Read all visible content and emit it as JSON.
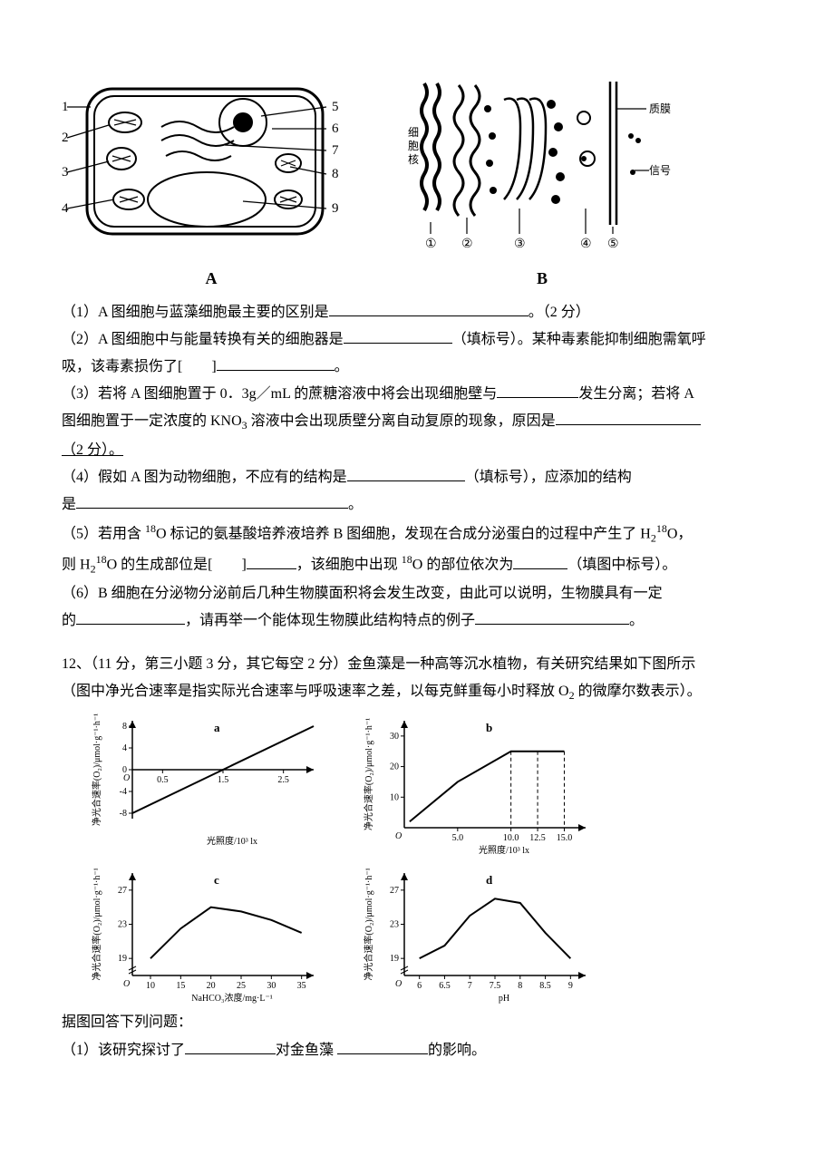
{
  "diagrams": {
    "A": {
      "label": "A",
      "left_numbers": [
        "1",
        "2",
        "3",
        "4"
      ],
      "right_numbers": [
        "5",
        "6",
        "7",
        "8",
        "9"
      ],
      "line_color": "#000000",
      "fill_color": "#ffffff"
    },
    "B": {
      "label": "B",
      "right_labels": [
        "质膜",
        "信号"
      ],
      "left_label": "细胞核",
      "bottom_circles": [
        "①",
        "②",
        "③",
        "④",
        "⑤"
      ],
      "line_color": "#000000"
    }
  },
  "q11": {
    "p1_a": "（1）A 图细胞与蓝藻细胞最主要的区别是",
    "p1_b": "。（2 分）",
    "p2_a": "（2）A 图细胞中与能量转换有关的细胞器是",
    "p2_b": "（填标号）。某种毒素能抑制细胞需氧呼",
    "p3_a": "吸，该毒素损伤了[　　]",
    "p3_b": "。",
    "p4_a": "（3）若将 A 图细胞置于 0．3g／mL 的蔗糖溶液中将会出现细胞壁与",
    "p4_b": "发生分离；若将 A",
    "p5_a": "图细胞置于一定浓度的 KNO",
    "p5_a_sub": "3",
    "p5_a2": " 溶液中会出现质壁分离自动复原的现象，原因是",
    "p6_a": "（2 分）。",
    "p7_a": "（4）假如 A 图为动物细胞，不应有的结构是",
    "p7_b": "（填标号），应添加的结构",
    "p8_a": "是",
    "p8_b": "。",
    "p9_a": "（5）若用含 ",
    "p9_sup1": "18",
    "p9_b": "O 标记的氨基酸培养液培养 B 图细胞，发现在合成分泌蛋白的过程中产生了 H",
    "p9_sub1": "2",
    "p9_sup2": "18",
    "p9_c": "O，",
    "p10_a": "则 H",
    "p10_sub1": "2",
    "p10_sup1": "18",
    "p10_b": "O 的生成部位是[　　]",
    "p10_c": "，该细胞中出现 ",
    "p10_sup2": "18",
    "p10_d": "O 的部位依次为",
    "p10_e": "（填图中标号）。",
    "p11_a": "（6）B 细胞在分泌物分泌前后几种生物膜面积将会发生改变，由此可以说明，生物膜具有一定",
    "p12_a": "的",
    "p12_b": "，请再举一个能体现生物膜此结构特点的例子",
    "p12_c": "。"
  },
  "q12": {
    "intro1": "12、（11 分，第三小题 3 分，其它每空 2 分）金鱼藻是一种高等沉水植物，有关研究结果如下图所示",
    "intro2": "（图中净光合速率是指实际光合速率与呼吸速率之差，以每克鲜重每小时释放 O",
    "intro2_sub": "2",
    "intro2b": " 的微摩尔数表示）。",
    "foot": "据图回答下列问题：",
    "q1_a": "（1）该研究探讨了",
    "q1_b": "对金鱼藻 ",
    "q1_c": "的影响。"
  },
  "charts": {
    "common": {
      "axis_color": "#000000",
      "line_color": "#000000",
      "font_size": 10,
      "y_label": "净光合速率(O₂)/μmol·g⁻¹·h⁻¹"
    },
    "a": {
      "label": "a",
      "x_label": "光照度/10³ lx",
      "x_ticks": [
        "0.5",
        "1.5",
        "2.5"
      ],
      "x_vals": [
        0.5,
        1.5,
        2.5
      ],
      "y_ticks": [
        "-8",
        "-4",
        "0",
        "4",
        "8"
      ],
      "y_vals": [
        -8,
        -4,
        0,
        4,
        8
      ],
      "ylim": [
        -9,
        9
      ],
      "xlim": [
        0,
        3.0
      ],
      "points": [
        [
          0,
          -8
        ],
        [
          3.0,
          8
        ]
      ]
    },
    "b": {
      "label": "b",
      "x_label": "光照度/10³ lx",
      "x_ticks": [
        "5.0",
        "10.0",
        "12.5",
        "15.0"
      ],
      "x_vals": [
        5.0,
        10.0,
        12.5,
        15.0
      ],
      "y_ticks": [
        "10",
        "20",
        "30"
      ],
      "y_vals": [
        10,
        20,
        30
      ],
      "ylim": [
        0,
        35
      ],
      "xlim": [
        0,
        17
      ],
      "points": [
        [
          0.5,
          2
        ],
        [
          5.0,
          15
        ],
        [
          10.0,
          25
        ],
        [
          12.5,
          25
        ],
        [
          15.0,
          25
        ]
      ],
      "droplines_x": [
        10.0,
        12.5,
        15.0
      ],
      "drop_y": 25
    },
    "c": {
      "label": "c",
      "x_label": "NaHCO₃浓度/mg·L⁻¹",
      "x_ticks": [
        "10",
        "15",
        "20",
        "25",
        "30",
        "35"
      ],
      "x_vals": [
        10,
        15,
        20,
        25,
        30,
        35
      ],
      "y_ticks": [
        "19",
        "23",
        "27"
      ],
      "y_vals": [
        19,
        23,
        27
      ],
      "ylim": [
        17,
        29
      ],
      "xlim": [
        7,
        37
      ],
      "points": [
        [
          10,
          19
        ],
        [
          15,
          22.5
        ],
        [
          20,
          25
        ],
        [
          25,
          24.5
        ],
        [
          30,
          23.5
        ],
        [
          35,
          22
        ]
      ]
    },
    "d": {
      "label": "d",
      "x_label": "pH",
      "x_ticks": [
        "6",
        "6.5",
        "7",
        "7.5",
        "8",
        "8.5",
        "9"
      ],
      "x_vals": [
        6,
        6.5,
        7,
        7.5,
        8,
        8.5,
        9
      ],
      "y_ticks": [
        "19",
        "23",
        "27"
      ],
      "y_vals": [
        19,
        23,
        27
      ],
      "ylim": [
        17,
        29
      ],
      "xlim": [
        5.7,
        9.3
      ],
      "points": [
        [
          6,
          19
        ],
        [
          6.5,
          20.5
        ],
        [
          7,
          24
        ],
        [
          7.5,
          26
        ],
        [
          8,
          25.5
        ],
        [
          8.5,
          22
        ],
        [
          9,
          19
        ]
      ]
    }
  },
  "blank_widths": {
    "w_long": 220,
    "w_mid": 130,
    "w_short": 90,
    "w_xl": 300,
    "w_xxl": 340
  }
}
